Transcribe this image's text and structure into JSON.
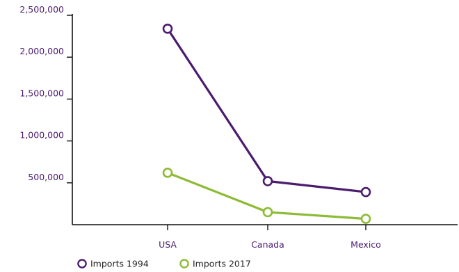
{
  "chart_data": {
    "type": "line",
    "title": "",
    "xlabel": "",
    "ylabel": "",
    "categories": [
      "USA",
      "Canada",
      "Mexico"
    ],
    "y_ticks": [
      500000,
      1000000,
      1500000,
      2000000,
      2500000
    ],
    "y_tick_labels": [
      "500,000",
      "1,000,000",
      "1,500,000",
      "2,000,000",
      "2,500,000"
    ],
    "ylim": [
      0,
      2500000
    ],
    "grid": false,
    "legend_position": "bottom-left",
    "series": [
      {
        "name": "Imports 1994",
        "color": "#4b1c6e",
        "values": [
          2340000,
          520000,
          390000
        ]
      },
      {
        "name": "Imports 2017",
        "color": "#8dbb34",
        "values": [
          620000,
          150000,
          70000
        ]
      }
    ],
    "axis_color": "#111111",
    "tick_label_color": "#4b1c6e"
  }
}
